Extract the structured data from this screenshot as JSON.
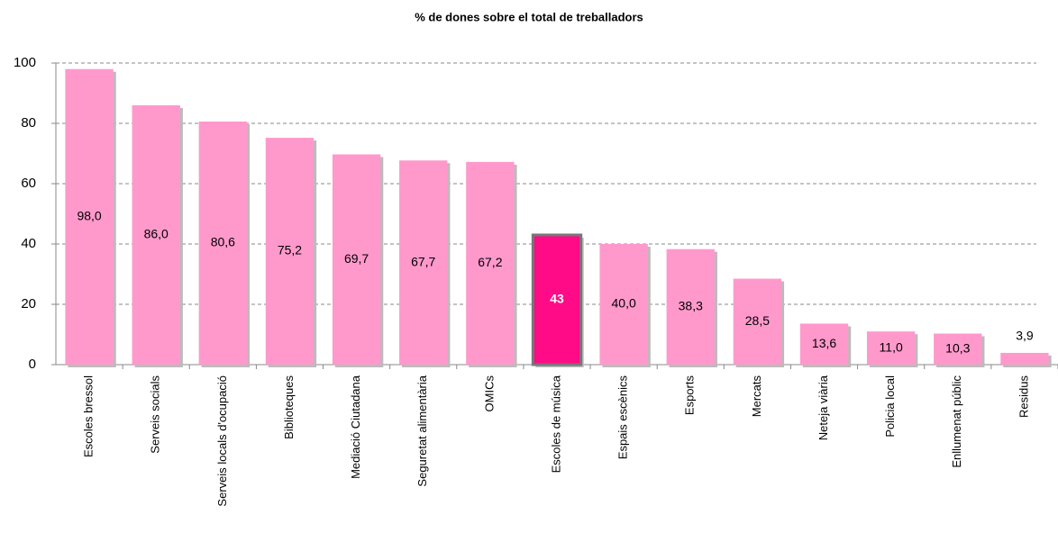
{
  "chart_data": {
    "type": "bar",
    "title": "% de dones sobre el total de treballadors",
    "categories": [
      "Escoles bressol",
      "Serveis socials",
      "Serveis locals d'ocupació",
      "Biblioteques",
      "Mediació Ciutadana",
      "Seguretat alimentària",
      "OMICs",
      "Escoles de música",
      "Espais escènics",
      "Esports",
      "Mercats",
      "Neteja viària",
      "Policia local",
      "Enllumenat públic",
      "Residus"
    ],
    "values": [
      98.0,
      86.0,
      80.6,
      75.2,
      69.7,
      67.7,
      67.2,
      43,
      40.0,
      38.3,
      28.5,
      13.6,
      11.0,
      10.3,
      3.9
    ],
    "value_labels": [
      "98,0",
      "86,0",
      "80,6",
      "75,2",
      "69,7",
      "67,7",
      "67,2",
      "43",
      "40,0",
      "38,3",
      "28,5",
      "13,6",
      "11,0",
      "10,3",
      "3,9"
    ],
    "colors": [
      "#ff99cc",
      "#ff99cc",
      "#ff99cc",
      "#ff99cc",
      "#ff99cc",
      "#ff99cc",
      "#ff99cc",
      "#ff0a87",
      "#ff99cc",
      "#ff99cc",
      "#ff99cc",
      "#ff99cc",
      "#ff99cc",
      "#ff99cc",
      "#ff99cc"
    ],
    "ylim": [
      0,
      100
    ],
    "yticks": [
      0,
      20,
      40,
      60,
      80,
      100
    ],
    "grid": true
  }
}
